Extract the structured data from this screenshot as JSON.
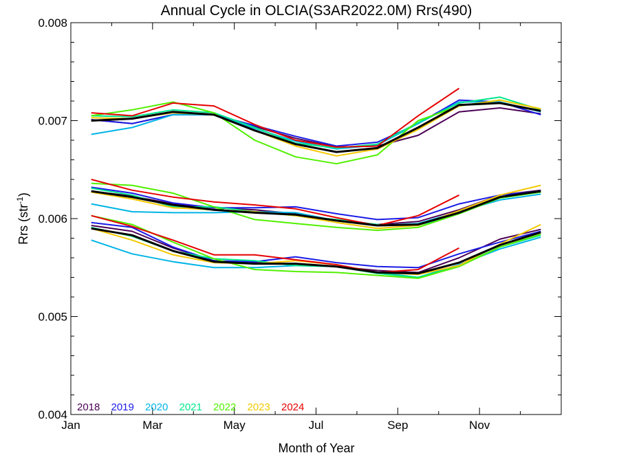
{
  "chart_data": {
    "type": "line",
    "title": "Annual Cycle in OLCIA(S3AR2022.0M) Rrs(490)",
    "xlabel": "Month of Year",
    "ylabel_main": "Rrs (str",
    "ylabel_sup": "-1",
    "ylabel_close": ")",
    "xlim": [
      0,
      12
    ],
    "ylim": [
      0.004,
      0.008
    ],
    "x_ticks": [
      {
        "value": 0,
        "label": "Jan"
      },
      {
        "value": 2,
        "label": "Mar"
      },
      {
        "value": 4,
        "label": "May"
      },
      {
        "value": 6,
        "label": "Jul"
      },
      {
        "value": 8,
        "label": "Sep"
      },
      {
        "value": 10,
        "label": "Nov"
      }
    ],
    "y_ticks": [
      {
        "value": 0.004,
        "label": "0.004"
      },
      {
        "value": 0.005,
        "label": "0.005"
      },
      {
        "value": 0.006,
        "label": "0.006"
      },
      {
        "value": 0.007,
        "label": "0.007"
      },
      {
        "value": 0.008,
        "label": "0.008"
      }
    ],
    "x": [
      0.5,
      1.5,
      2.5,
      3.5,
      4.5,
      5.5,
      6.5,
      7.5,
      8.5,
      9.5,
      10.5,
      11.5
    ],
    "legend_position": "bottom-left",
    "series": [
      {
        "name": "2018",
        "color": "#4b0055",
        "groups": [
          [
            0.00701,
            0.00697,
            0.00706,
            0.00706,
            0.00694,
            0.00682,
            0.00673,
            0.00674,
            0.00685,
            0.00709,
            0.00713,
            0.00707
          ],
          [
            0.00628,
            0.00623,
            0.00615,
            0.00611,
            0.00609,
            0.00605,
            0.00598,
            0.00594,
            0.00597,
            0.00609,
            0.00624,
            0.00629
          ],
          [
            0.00593,
            0.00587,
            0.0057,
            0.00557,
            0.00555,
            0.00554,
            0.00551,
            0.00547,
            0.00545,
            0.0056,
            0.00579,
            0.00589
          ]
        ]
      },
      {
        "name": "2019",
        "color": "#1a1ae6",
        "groups": [
          [
            0.00701,
            0.00697,
            0.00706,
            0.00706,
            0.00695,
            0.00684,
            0.00674,
            0.00678,
            0.00697,
            0.00721,
            0.00719,
            0.00706
          ],
          [
            0.00632,
            0.00626,
            0.00616,
            0.00611,
            0.00611,
            0.00612,
            0.00605,
            0.00599,
            0.00601,
            0.00615,
            0.00624,
            0.00628
          ],
          [
            0.00596,
            0.00591,
            0.00571,
            0.00557,
            0.00556,
            0.00561,
            0.00555,
            0.00551,
            0.0055,
            0.00564,
            0.00576,
            0.00587
          ]
        ]
      },
      {
        "name": "2020",
        "color": "#00b4e6",
        "groups": [
          [
            0.00686,
            0.00693,
            0.00706,
            0.00706,
            0.00692,
            0.00679,
            0.00671,
            0.00675,
            0.00697,
            0.00719,
            0.00719,
            0.00709
          ],
          [
            0.00615,
            0.00607,
            0.00606,
            0.00606,
            0.00607,
            0.00606,
            0.00598,
            0.00593,
            0.00595,
            0.00607,
            0.00619,
            0.00625
          ],
          [
            0.00578,
            0.00564,
            0.00556,
            0.0055,
            0.0055,
            0.00552,
            0.00551,
            0.00545,
            0.0054,
            0.00553,
            0.00569,
            0.00581
          ]
        ]
      },
      {
        "name": "2021",
        "color": "#00e68c",
        "groups": [
          [
            0.00705,
            0.00704,
            0.00711,
            0.00708,
            0.00693,
            0.00677,
            0.00672,
            0.00676,
            0.00698,
            0.00718,
            0.00724,
            0.00711
          ],
          [
            0.00631,
            0.00624,
            0.00612,
            0.00612,
            0.00607,
            0.00603,
            0.00599,
            0.00594,
            0.00593,
            0.00605,
            0.00621,
            0.00627
          ],
          [
            0.00591,
            0.00582,
            0.00567,
            0.00559,
            0.00557,
            0.00552,
            0.00551,
            0.00544,
            0.0054,
            0.00552,
            0.00571,
            0.00583
          ]
        ]
      },
      {
        "name": "2022",
        "color": "#50f000",
        "groups": [
          [
            0.00705,
            0.00711,
            0.00719,
            0.00708,
            0.0068,
            0.00663,
            0.00656,
            0.00665,
            0.007,
            0.00715,
            0.00721,
            0.00712
          ],
          [
            0.00636,
            0.00634,
            0.00626,
            0.00612,
            0.00599,
            0.00595,
            0.00591,
            0.00588,
            0.00591,
            0.00605,
            0.00621,
            0.00627
          ],
          [
            0.00603,
            0.00594,
            0.00576,
            0.00559,
            0.00548,
            0.00546,
            0.00545,
            0.00542,
            0.00539,
            0.00551,
            0.00571,
            0.00584
          ]
        ]
      },
      {
        "name": "2023",
        "color": "#f5c800",
        "groups": [
          [
            0.00703,
            0.00702,
            0.00708,
            0.00706,
            0.0069,
            0.00674,
            0.00664,
            0.00671,
            0.00691,
            0.00715,
            0.00721,
            0.00712
          ],
          [
            0.00627,
            0.0062,
            0.00611,
            0.00609,
            0.00607,
            0.00603,
            0.00596,
            0.0059,
            0.00593,
            0.00608,
            0.00624,
            0.00634
          ],
          [
            0.0059,
            0.00578,
            0.00563,
            0.00555,
            0.00554,
            0.00557,
            0.00553,
            0.00545,
            0.00543,
            0.00552,
            0.00574,
            0.00594
          ]
        ]
      },
      {
        "name": "2024",
        "color": "#e60000",
        "groups": [
          [
            0.00708,
            0.00705,
            0.00718,
            0.00715,
            0.00696,
            0.0068,
            0.00673,
            0.00674,
            0.00705,
            0.00733
          ],
          [
            0.0064,
            0.00629,
            0.00622,
            0.00617,
            0.00614,
            0.0061,
            0.00601,
            0.00593,
            0.00603,
            0.00624
          ],
          [
            0.00603,
            0.00592,
            0.00578,
            0.00563,
            0.00563,
            0.00558,
            0.00553,
            0.00545,
            0.00548,
            0.0057
          ]
        ]
      },
      {
        "name": "",
        "color": "#000000",
        "width": 3,
        "groups": [
          [
            0.007,
            0.00702,
            0.00709,
            0.00706,
            0.0069,
            0.00676,
            0.00668,
            0.00672,
            0.00693,
            0.00716,
            0.00718,
            0.0071
          ],
          [
            0.00628,
            0.00622,
            0.00614,
            0.00609,
            0.00606,
            0.00604,
            0.00598,
            0.00593,
            0.00594,
            0.00606,
            0.00622,
            0.00628
          ],
          [
            0.0059,
            0.00583,
            0.00567,
            0.00556,
            0.00554,
            0.00554,
            0.00551,
            0.00545,
            0.00544,
            0.00555,
            0.00573,
            0.00586
          ]
        ]
      }
    ]
  }
}
